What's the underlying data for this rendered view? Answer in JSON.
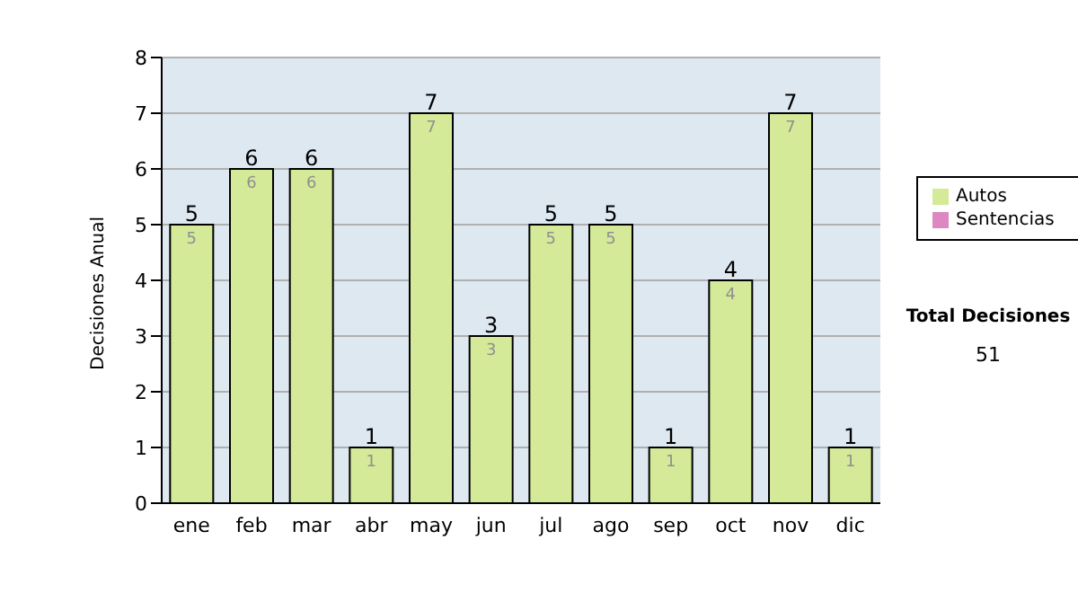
{
  "chart_data": {
    "type": "bar",
    "stacked": true,
    "ylabel": "Decisiones Anual",
    "categories": [
      "ene",
      "feb",
      "mar",
      "abr",
      "may",
      "jun",
      "jul",
      "ago",
      "sep",
      "oct",
      "nov",
      "dic"
    ],
    "series": [
      {
        "name": "Autos",
        "color": "#d4ea98",
        "values": [
          5,
          6,
          6,
          1,
          7,
          3,
          5,
          5,
          1,
          4,
          7,
          1
        ],
        "value_labels": [
          "5",
          "6",
          "6",
          "1",
          "7",
          "3",
          "5",
          "5",
          "1",
          "4",
          "7",
          "1"
        ]
      },
      {
        "name": "Sentencias",
        "color": "#dd88c0",
        "values": [
          0,
          0,
          0,
          0,
          0,
          0,
          0,
          0,
          0,
          0,
          0,
          0
        ]
      }
    ],
    "totals": [
      "5",
      "6",
      "6",
      "1",
      "7",
      "3",
      "5",
      "5",
      "1",
      "4",
      "7",
      "1"
    ],
    "ylim": [
      0,
      8
    ],
    "yticks": [
      0,
      1,
      2,
      3,
      4,
      5,
      6,
      7,
      8
    ],
    "grid": "y",
    "legend": "right",
    "annotations": [
      "Total Decisiones",
      "51"
    ]
  }
}
